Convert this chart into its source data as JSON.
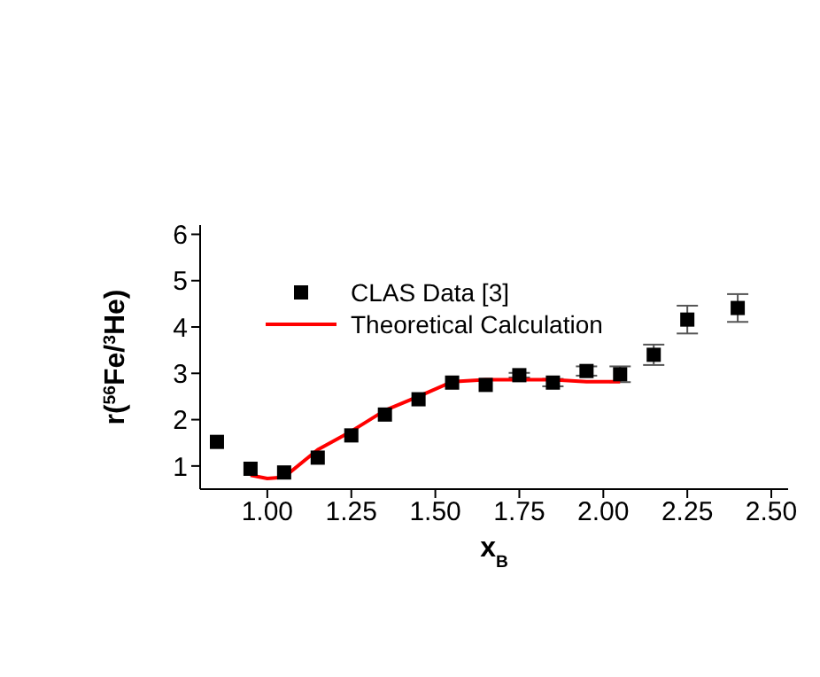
{
  "chart_data": {
    "type": "scatter",
    "xlabel": "x$_{B}$",
    "ylabel": "r($^{56}$Fe/$^{3}$He)",
    "xlim": [
      0.8,
      2.55
    ],
    "xticks": [
      {
        "value": 1,
        "label": "1.00"
      },
      1.25,
      {
        "value": 1.5,
        "label": "1.50"
      },
      1.75,
      {
        "value": 2,
        "label": "2.00"
      },
      2.25,
      {
        "value": 2.5,
        "label": "2.50"
      }
    ],
    "ylim": [
      0.5,
      6.2
    ],
    "yticks": [
      1,
      2,
      3,
      4,
      5,
      6
    ],
    "grid": false,
    "legend": "top left",
    "series": [
      {
        "name": "CLAS Data [3]",
        "color": "#000000",
        "marker": "square",
        "x": [
          0.85,
          0.95,
          1.05,
          1.15,
          1.25,
          1.35,
          1.45,
          1.55,
          1.65,
          1.75,
          1.85,
          1.95,
          2.05,
          2.15,
          2.25,
          2.4
        ],
        "values": [
          1.52,
          0.94,
          0.86,
          1.18,
          1.66,
          2.11,
          2.44,
          2.8,
          2.75,
          2.96,
          2.8,
          3.05,
          2.98,
          3.4,
          4.16,
          4.41
        ],
        "errors": [
          null,
          null,
          null,
          null,
          null,
          null,
          null,
          null,
          null,
          0.05,
          0.08,
          0.1,
          0.17,
          0.22,
          0.3,
          0.3
        ]
      },
      {
        "name": "Theoretical Calculation",
        "type": "line",
        "color": "#ff0000",
        "marker": "none",
        "line_style": "solid",
        "x": [
          0.95,
          1.0,
          1.05,
          1.15,
          1.25,
          1.35,
          1.45,
          1.55,
          1.65,
          1.75,
          1.85,
          1.95,
          2.05
        ],
        "values": [
          0.8,
          0.73,
          0.76,
          1.35,
          1.75,
          2.2,
          2.5,
          2.82,
          2.86,
          2.86,
          2.86,
          2.82,
          2.82
        ]
      }
    ]
  }
}
